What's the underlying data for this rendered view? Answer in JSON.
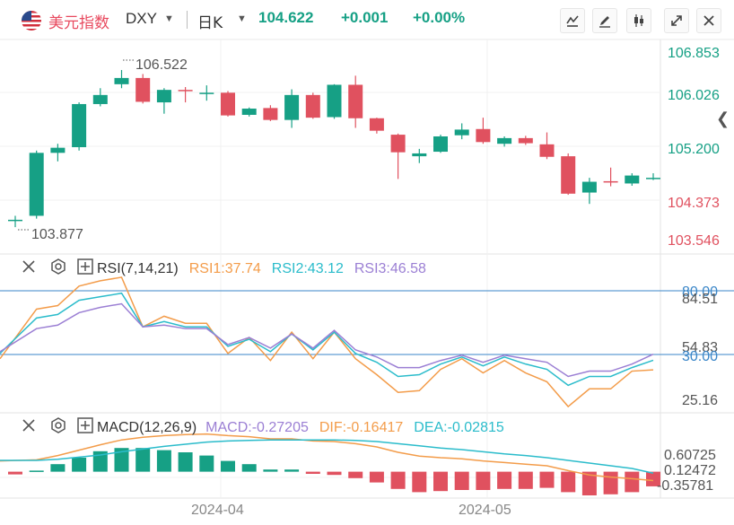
{
  "header": {
    "symbol_name": "美元指数",
    "symbol_code": "DXY",
    "period": "日K",
    "last_price": "104.622",
    "change": "+0.001",
    "change_pct": "+0.00%"
  },
  "toolbar_icons": [
    "indicator-icon",
    "draw-icon",
    "candle-type-icon",
    "fullscreen-icon",
    "close-icon"
  ],
  "colors": {
    "up": "#16a085",
    "down": "#e0515f",
    "rsi1": "#f39c4a",
    "rsi2": "#2bbccb",
    "rsi3": "#9b7fd4",
    "hline": "#3a86c8"
  },
  "main_axis": {
    "labels": [
      "106.853",
      "106.026",
      "105.200",
      "104.373",
      "103.546"
    ],
    "high_label": "106.522",
    "low_label": "103.877"
  },
  "rsi_panel": {
    "title": "RSI(7,14,21)",
    "rsi1": "RSI1:37.74",
    "rsi2": "RSI2:43.12",
    "rsi3": "RSI3:46.58",
    "axis_labels": [
      "80.00",
      "84.51",
      "54.83",
      "30.00",
      "25.16"
    ]
  },
  "macd_panel": {
    "title": "MACD(12,26,9)",
    "macd": "MACD:-0.27205",
    "dif": "DIF:-0.16417",
    "dea": "DEA:-0.02815",
    "axis_labels": [
      "0.60725",
      "0.12472",
      "-0.35781"
    ]
  },
  "x_axis": {
    "labels": [
      "2024-04",
      "2024-05"
    ]
  },
  "chart_data": {
    "type": "candlestick",
    "ylim": [
      103.546,
      106.853
    ],
    "candles": [
      {
        "o": 103.88,
        "c": 103.88,
        "h": 103.95,
        "l": 103.75
      },
      {
        "o": 103.95,
        "c": 105.06,
        "h": 105.1,
        "l": 103.9
      },
      {
        "o": 105.06,
        "c": 105.15,
        "h": 105.22,
        "l": 104.91
      },
      {
        "o": 105.16,
        "c": 105.92,
        "h": 105.95,
        "l": 105.1
      },
      {
        "o": 105.92,
        "c": 106.08,
        "h": 106.2,
        "l": 105.88
      },
      {
        "o": 106.27,
        "c": 106.38,
        "h": 106.52,
        "l": 106.2
      },
      {
        "o": 106.38,
        "c": 105.96,
        "h": 106.45,
        "l": 105.93
      },
      {
        "o": 105.95,
        "c": 106.17,
        "h": 106.2,
        "l": 105.75
      },
      {
        "o": 106.17,
        "c": 106.15,
        "h": 106.22,
        "l": 105.95
      },
      {
        "o": 106.1,
        "c": 106.12,
        "h": 106.25,
        "l": 105.98
      },
      {
        "o": 106.12,
        "c": 105.72,
        "h": 106.15,
        "l": 105.7
      },
      {
        "o": 105.73,
        "c": 105.84,
        "h": 105.86,
        "l": 105.7
      },
      {
        "o": 105.85,
        "c": 105.64,
        "h": 105.9,
        "l": 105.62
      },
      {
        "o": 105.64,
        "c": 106.08,
        "h": 106.18,
        "l": 105.5
      },
      {
        "o": 106.08,
        "c": 105.68,
        "h": 106.12,
        "l": 105.66
      },
      {
        "o": 105.69,
        "c": 106.26,
        "h": 106.27,
        "l": 105.66
      },
      {
        "o": 106.26,
        "c": 105.67,
        "h": 106.42,
        "l": 105.5
      },
      {
        "o": 105.67,
        "c": 105.45,
        "h": 105.68,
        "l": 105.4
      },
      {
        "o": 105.38,
        "c": 105.07,
        "h": 105.4,
        "l": 104.6
      },
      {
        "o": 105.0,
        "c": 105.05,
        "h": 105.13,
        "l": 104.88
      },
      {
        "o": 105.08,
        "c": 105.35,
        "h": 105.38,
        "l": 105.06
      },
      {
        "o": 105.37,
        "c": 105.47,
        "h": 105.58,
        "l": 105.3
      },
      {
        "o": 105.48,
        "c": 105.25,
        "h": 105.68,
        "l": 105.22
      },
      {
        "o": 105.22,
        "c": 105.32,
        "h": 105.35,
        "l": 105.17
      },
      {
        "o": 105.32,
        "c": 105.23,
        "h": 105.36,
        "l": 105.2
      },
      {
        "o": 105.21,
        "c": 104.99,
        "h": 105.42,
        "l": 104.95
      },
      {
        "o": 105.0,
        "c": 104.34,
        "h": 105.05,
        "l": 104.32
      },
      {
        "o": 104.36,
        "c": 104.55,
        "h": 104.62,
        "l": 104.16
      },
      {
        "o": 104.56,
        "c": 104.55,
        "h": 104.8,
        "l": 104.47
      },
      {
        "o": 104.52,
        "c": 104.66,
        "h": 104.7,
        "l": 104.48
      },
      {
        "o": 104.62,
        "c": 104.62,
        "h": 104.7,
        "l": 104.58
      }
    ],
    "rsi": {
      "ylim": [
        16,
        92
      ],
      "rsi1": [
        44,
        72,
        74,
        85,
        88,
        90,
        62,
        68,
        64,
        64,
        47,
        56,
        43,
        59,
        44,
        59,
        44,
        35,
        25,
        26,
        38,
        44,
        36,
        43,
        36,
        31,
        17,
        27,
        27,
        37,
        37.74
      ],
      "rsi2": [
        47,
        67,
        69,
        77,
        79,
        81,
        62,
        65,
        62,
        62,
        51,
        55,
        48,
        58,
        49,
        59,
        47,
        42,
        34,
        35,
        41,
        45,
        40,
        45,
        41,
        38,
        29,
        34,
        34,
        39,
        43.12
      ],
      "rsi3": [
        48,
        61,
        63,
        70,
        73,
        75,
        62,
        63,
        61,
        61,
        52,
        56,
        50,
        58,
        50,
        60,
        49,
        45,
        39,
        39,
        43,
        46,
        42,
        46,
        44,
        42,
        34,
        37,
        37,
        41,
        46.58
      ]
    },
    "macd": {
      "ylim": [
        -0.44,
        0.76
      ],
      "dif": [
        0.2,
        0.22,
        0.3,
        0.4,
        0.5,
        0.59,
        0.64,
        0.67,
        0.69,
        0.7,
        0.67,
        0.65,
        0.61,
        0.61,
        0.57,
        0.56,
        0.52,
        0.46,
        0.36,
        0.29,
        0.26,
        0.24,
        0.2,
        0.17,
        0.14,
        0.11,
        0.02,
        -0.06,
        -0.1,
        -0.13,
        -0.16417
      ],
      "dea": [
        0.21,
        0.21,
        0.23,
        0.27,
        0.31,
        0.37,
        0.42,
        0.47,
        0.51,
        0.55,
        0.57,
        0.58,
        0.59,
        0.59,
        0.59,
        0.59,
        0.58,
        0.56,
        0.52,
        0.48,
        0.44,
        0.41,
        0.37,
        0.33,
        0.3,
        0.26,
        0.21,
        0.16,
        0.11,
        0.06,
        -0.02815
      ],
      "hist": [
        -0.05,
        0.02,
        0.14,
        0.26,
        0.38,
        0.44,
        0.44,
        0.4,
        0.36,
        0.3,
        0.2,
        0.14,
        0.04,
        0.04,
        -0.04,
        -0.06,
        -0.12,
        -0.2,
        -0.32,
        -0.38,
        -0.36,
        -0.34,
        -0.34,
        -0.32,
        -0.32,
        -0.3,
        -0.38,
        -0.44,
        -0.42,
        -0.38,
        -0.27205
      ]
    }
  }
}
